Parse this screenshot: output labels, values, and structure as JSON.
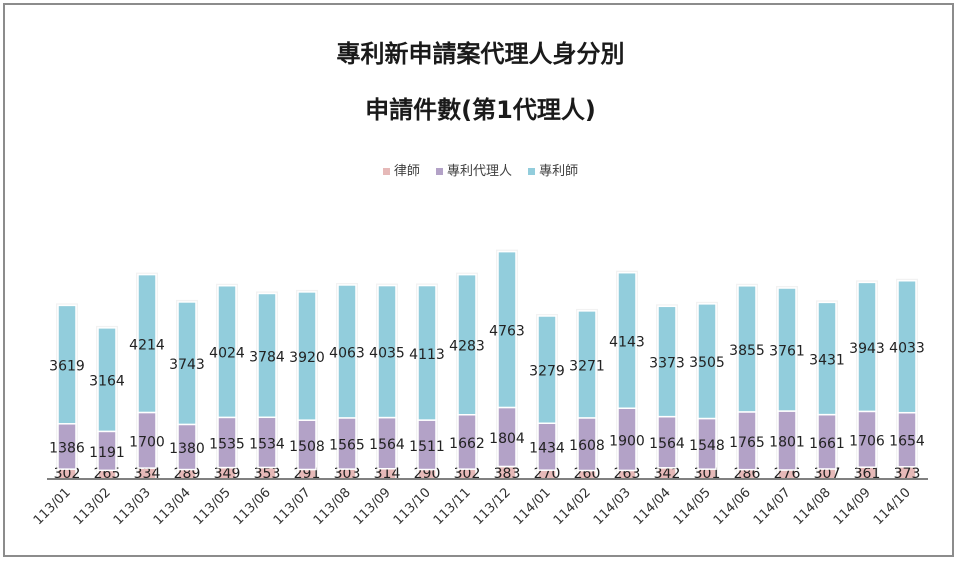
{
  "chart_data": {
    "type": "bar",
    "stacked": true,
    "title": "專利新申請案代理人身分別",
    "subtitle": "申請件數(第1代理人)",
    "categories": [
      "113/01",
      "113/02",
      "113/03",
      "113/04",
      "113/05",
      "113/06",
      "113/07",
      "113/08",
      "113/09",
      "113/10",
      "113/11",
      "113/12",
      "114/01",
      "114/02",
      "114/03",
      "114/04",
      "114/05",
      "114/06",
      "114/07",
      "114/08",
      "114/09",
      "114/10"
    ],
    "series": [
      {
        "name": "律師",
        "color": "#E6B9B8",
        "values": [
          302,
          265,
          334,
          289,
          349,
          353,
          291,
          303,
          314,
          290,
          302,
          383,
          270,
          260,
          263,
          342,
          301,
          286,
          276,
          307,
          361,
          373
        ]
      },
      {
        "name": "專利代理人",
        "color": "#B3A2C7",
        "values": [
          1386,
          1191,
          1700,
          1380,
          1535,
          1534,
          1508,
          1565,
          1564,
          1511,
          1662,
          1804,
          1434,
          1608,
          1900,
          1564,
          1548,
          1765,
          1801,
          1661,
          1706,
          1654
        ]
      },
      {
        "name": "專利師",
        "color": "#92CDDC",
        "values": [
          3619,
          3164,
          4214,
          3743,
          4024,
          3784,
          3920,
          4063,
          4035,
          4113,
          4283,
          4763,
          3279,
          3271,
          4143,
          3373,
          3505,
          3855,
          3761,
          3431,
          3943,
          4033
        ]
      }
    ],
    "ylim": [
      0,
      7000
    ],
    "grid": false,
    "legend": "top",
    "data_labels": true,
    "xlabel": "",
    "ylabel": ""
  }
}
